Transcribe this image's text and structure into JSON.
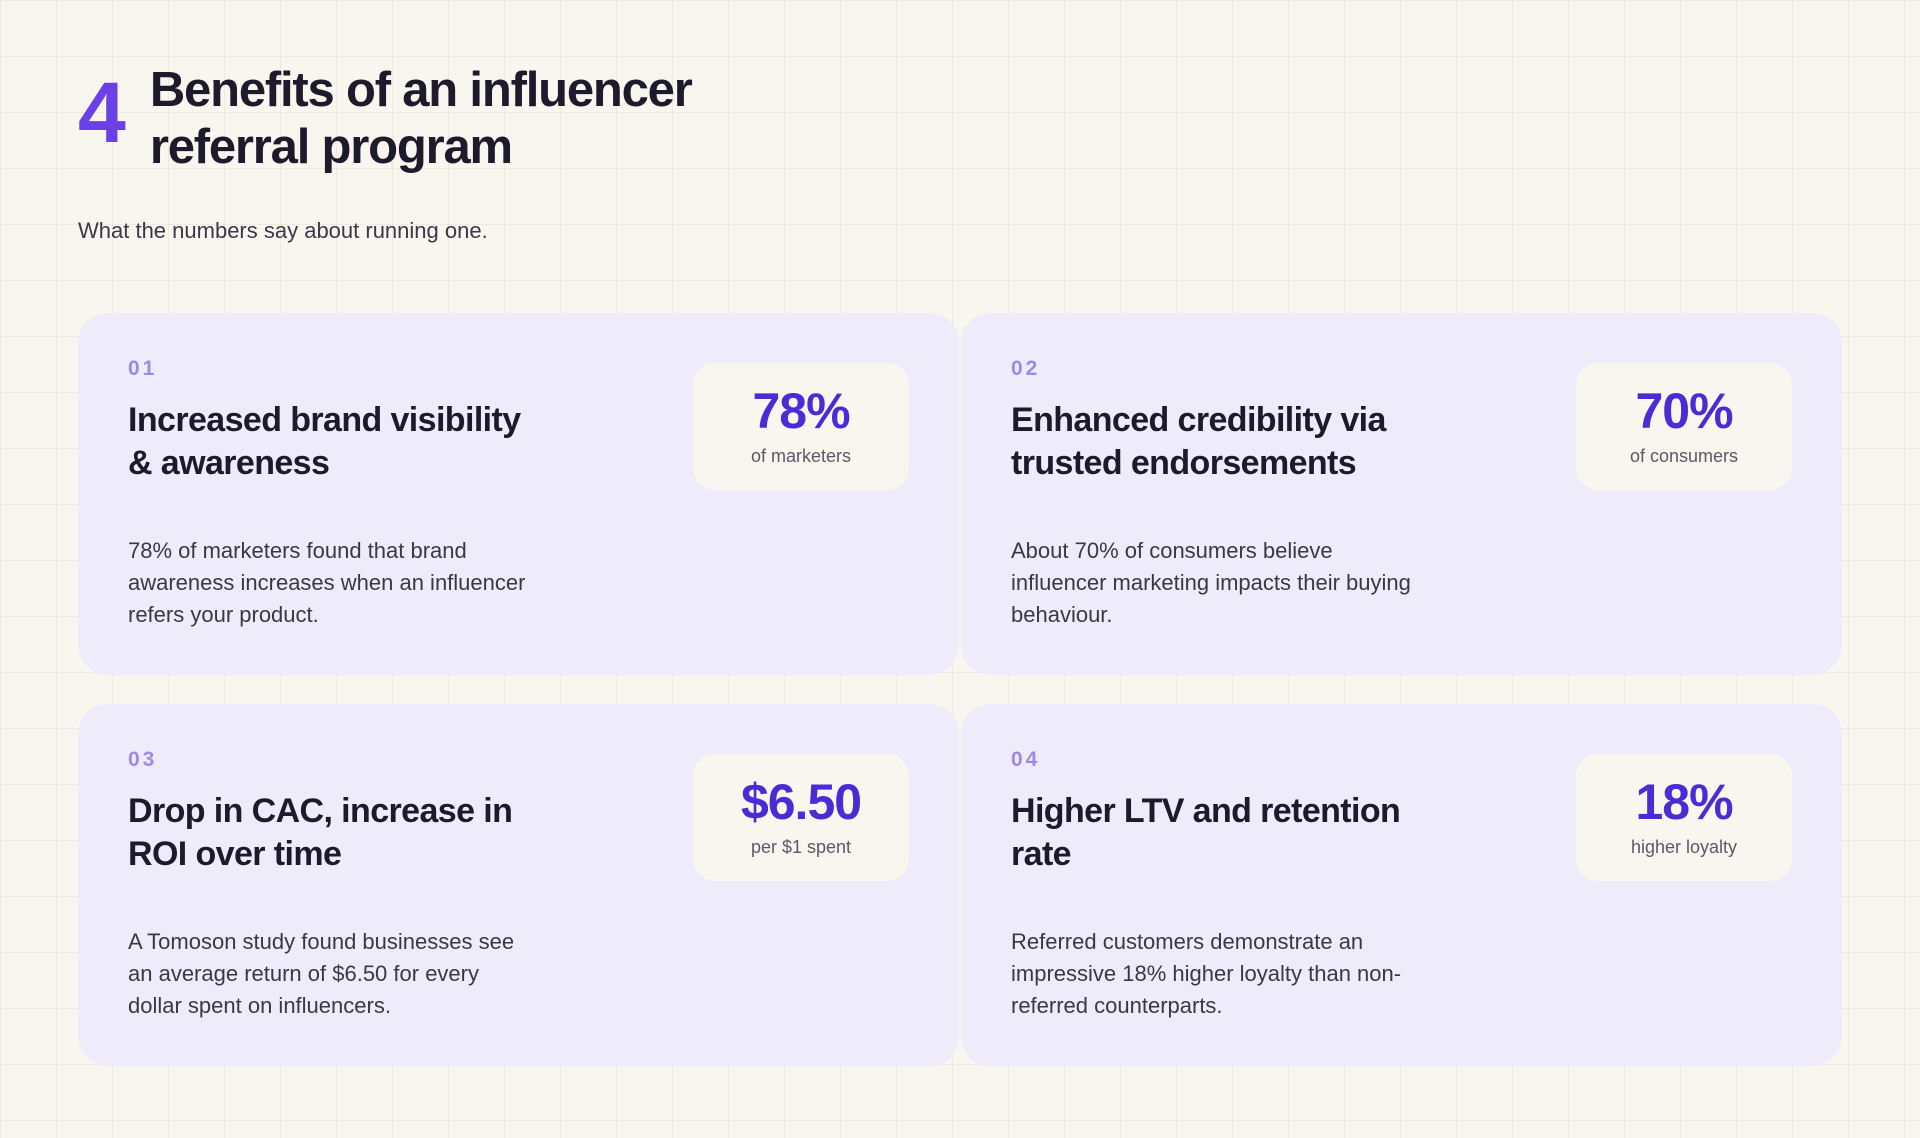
{
  "header": {
    "number": "4",
    "title": "Benefits of an influencer referral program",
    "subtitle": "What the numbers say about running one."
  },
  "cards": [
    {
      "index": "01",
      "title": "Increased brand visibility & awareness",
      "stat_value": "78%",
      "stat_caption": "of marketers",
      "description": "78% of marketers found that brand awareness increases when an influencer refers your product."
    },
    {
      "index": "02",
      "title": "Enhanced credibility via trusted endorsements",
      "stat_value": "70%",
      "stat_caption": "of consumers",
      "description": "About 70% of consumers believe influencer marketing impacts their buying behaviour."
    },
    {
      "index": "03",
      "title": "Drop in CAC, increase in ROI over time",
      "stat_value": "$6.50",
      "stat_caption": "per $1 spent",
      "description": "A Tomoson study found businesses see an average return of $6.50 for every dollar spent on influencers."
    },
    {
      "index": "04",
      "title": "Higher LTV and retention rate",
      "stat_value": "18%",
      "stat_caption": "higher loyalty",
      "description": "Referred customers demonstrate an impressive 18% higher loyalty than non-referred counterparts."
    }
  ],
  "colors": {
    "background": "#f9f6ef",
    "accent": "#6b40e6",
    "stat": "#4b2bd6",
    "card": "#eeebfb",
    "index": "#9d8ae4"
  }
}
